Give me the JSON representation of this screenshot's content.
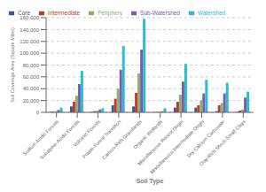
{
  "chart_data": {
    "type": "bar",
    "categories": [
      "Sodium Acidic Forests",
      "Subalpine Acidic Forests",
      "Volcanic Forests",
      "Prairie-Forest Transition",
      "Carbon-Rich Grasslands",
      "Organic Wetlands",
      "Miscellaneous Recent Origin",
      "Miscellaneous Intermediate Origin",
      "Dry Calcium Carbonate",
      "Clay-Rich Shrub-Small Clays"
    ],
    "series": [
      {
        "name": "Core",
        "color": "#3C5A8C",
        "values": [
          1000,
          10000,
          1000,
          12000,
          10000,
          500,
          8000,
          8000,
          2000,
          1000
        ]
      },
      {
        "name": "Intermediate",
        "color": "#C0392B",
        "values": [
          1500,
          18000,
          2000,
          23000,
          33000,
          800,
          18000,
          12000,
          12000,
          3000
        ]
      },
      {
        "name": "Periphery",
        "color": "#8DB06B",
        "values": [
          2000,
          28000,
          3000,
          40000,
          66000,
          1000,
          30000,
          20000,
          16000,
          5000
        ]
      },
      {
        "name": "Sub-Watershed",
        "color": "#7B5EA7",
        "values": [
          4000,
          48000,
          5000,
          72000,
          106000,
          2000,
          52000,
          32000,
          32000,
          25000
        ]
      },
      {
        "name": "Watershed",
        "color": "#2BBCD4",
        "values": [
          8000,
          70000,
          7000,
          112000,
          158000,
          7000,
          82000,
          55000,
          50000,
          35000
        ]
      }
    ],
    "xlabel": "Soil Type",
    "ylabel": "Soil Coverage Area (Square Miles)",
    "ylim": [
      0,
      160000
    ],
    "yticks": [
      0,
      {
        "value": 20000,
        "label": "20,000"
      },
      {
        "value": 40000,
        "label": "40,000"
      },
      {
        "value": 60000,
        "label": "60,000"
      },
      {
        "value": 80000,
        "label": "80,000"
      },
      {
        "value": 100000,
        "label": "100,000"
      },
      {
        "value": 120000,
        "label": "120,000"
      },
      {
        "value": 140000,
        "label": "140,000"
      },
      {
        "value": 160000,
        "label": "160,000"
      }
    ],
    "grid": true,
    "legend": "upper left"
  }
}
